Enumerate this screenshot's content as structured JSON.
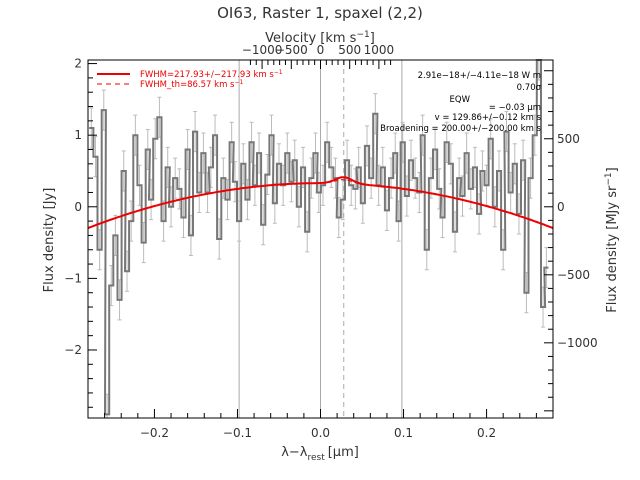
{
  "chart_data": {
    "type": "line",
    "title": "OI63, Raster 1, spaxel (2,2)",
    "xlabel": "λ−λ",
    "xlabel_sub": "rest",
    "xlabel_unit": "[μm]",
    "ylabel": "Flux density [Jy]",
    "top_axis_label": "Velocity [km s",
    "top_axis_sup": "−1",
    "top_axis_close": "]",
    "right_axis_label": "Flux density [MJy sr",
    "right_axis_sup": "−1",
    "right_axis_close": "]",
    "xlim": [
      -0.28,
      0.28
    ],
    "ylim": [
      -2.95,
      2.05
    ],
    "x_ticks": [
      "−0.2",
      "−0.1",
      "0.0",
      "0.1",
      "0.2"
    ],
    "x_tick_values": [
      -0.2,
      -0.1,
      0.0,
      0.1,
      0.2
    ],
    "y_ticks": [
      "−2",
      "−1",
      "0",
      "1",
      "2"
    ],
    "y_tick_values": [
      -2,
      -1,
      0,
      1,
      2
    ],
    "top_ticks": [
      "−1000",
      "−500",
      "0",
      "500",
      "1000"
    ],
    "top_tick_values": [
      -1000,
      -500,
      0,
      500,
      1000
    ],
    "right_ticks": [
      "−1000",
      "−500",
      "0",
      "500"
    ],
    "right_tick_values": [
      -1000,
      -500,
      0,
      500
    ],
    "right_axis_scale": 0.0019,
    "vertical_lines": [
      -0.098,
      0.0,
      0.098
    ],
    "dashed_line": 0.028,
    "legend": [
      {
        "label": "FWHM=217.93+/−217.93 km s",
        "sup": "−1",
        "style": "solid"
      },
      {
        "label": "FWHM_th=86.57 km s",
        "sup": "−1",
        "style": "dashed"
      }
    ],
    "annotations": [
      "2.91e−18+/−4.11e−18 W m",
      "0.70σ",
      "EQW",
      "= −0.03 μm",
      "v = 129.86+/−0.12 km s",
      "Broadening = 200.00+/−200.00 km s"
    ],
    "spectrum": {
      "x": [
        -0.276,
        -0.271,
        -0.266,
        -0.261,
        -0.257,
        -0.252,
        -0.247,
        -0.242,
        -0.237,
        -0.233,
        -0.228,
        -0.223,
        -0.218,
        -0.213,
        -0.208,
        -0.204,
        -0.199,
        -0.194,
        -0.189,
        -0.184,
        -0.18,
        -0.175,
        -0.17,
        -0.165,
        -0.16,
        -0.156,
        -0.151,
        -0.146,
        -0.141,
        -0.136,
        -0.132,
        -0.127,
        -0.122,
        -0.117,
        -0.112,
        -0.107,
        -0.103,
        -0.098,
        -0.093,
        -0.088,
        -0.083,
        -0.079,
        -0.074,
        -0.069,
        -0.064,
        -0.059,
        -0.055,
        -0.05,
        -0.045,
        -0.04,
        -0.035,
        -0.031,
        -0.026,
        -0.021,
        -0.016,
        -0.011,
        -0.006,
        -0.002,
        0.003,
        0.008,
        0.013,
        0.018,
        0.022,
        0.027,
        0.032,
        0.037,
        0.042,
        0.046,
        0.051,
        0.056,
        0.061,
        0.066,
        0.07,
        0.075,
        0.08,
        0.085,
        0.09,
        0.094,
        0.099,
        0.104,
        0.109,
        0.114,
        0.119,
        0.123,
        0.128,
        0.133,
        0.138,
        0.143,
        0.147,
        0.152,
        0.157,
        0.162,
        0.167,
        0.171,
        0.176,
        0.181,
        0.186,
        0.191,
        0.195,
        0.2,
        0.205,
        0.21,
        0.215,
        0.22,
        0.224,
        0.229,
        0.234,
        0.239,
        0.244,
        0.248,
        0.253,
        0.258,
        0.263,
        0.268,
        0.272
      ],
      "y": [
        1.1,
        0.7,
        -0.6,
        1.35,
        -2.9,
        -1.1,
        -0.4,
        -1.3,
        0.5,
        -0.9,
        -0.2,
        1.0,
        0.3,
        -0.5,
        0.8,
        0.1,
        0.95,
        1.25,
        -0.2,
        0.55,
        0.0,
        0.4,
        0.25,
        -0.15,
        0.8,
        -0.4,
        1.05,
        0.2,
        0.75,
        0.2,
        0.55,
        1.0,
        -0.45,
        0.4,
        0.1,
        0.9,
        0.35,
        -0.2,
        0.6,
        0.1,
        0.9,
        0.3,
        0.75,
        -0.25,
        0.45,
        1.0,
        0.05,
        0.6,
        0.3,
        0.75,
        0.35,
        0.65,
        0.0,
        0.55,
        -0.35,
        0.4,
        0.75,
        0.2,
        0.3,
        0.9,
        0.55,
        0.4,
        -0.15,
        0.1,
        0.65,
        0.3,
        0.25,
        0.55,
        0.05,
        0.85,
        0.4,
        1.3,
        0.3,
        0.55,
        -0.05,
        0.4,
        0.75,
        -0.2,
        0.9,
        0.15,
        0.65,
        0.4,
        0.2,
        1.0,
        -0.6,
        0.4,
        0.8,
        0.25,
        -0.15,
        0.9,
        0.6,
        -0.35,
        0.4,
        0.15,
        0.75,
        0.25,
        0.55,
        -0.1,
        0.5,
        0.3,
        0.95,
        0.0,
        0.5,
        -0.6,
        1.05,
        0.2,
        0.6,
        -0.1,
        0.65,
        -1.2,
        0.4,
        1.0,
        2.05,
        -1.4,
        -0.85
      ],
      "err": 0.28
    },
    "fit": {
      "type": "gaussian_plus_quadratic",
      "line_center": 0.028,
      "line_amplitude": 0.09,
      "line_sigma": 0.01,
      "baseline": [
        0.33,
        0.0,
        -8.0
      ]
    }
  }
}
